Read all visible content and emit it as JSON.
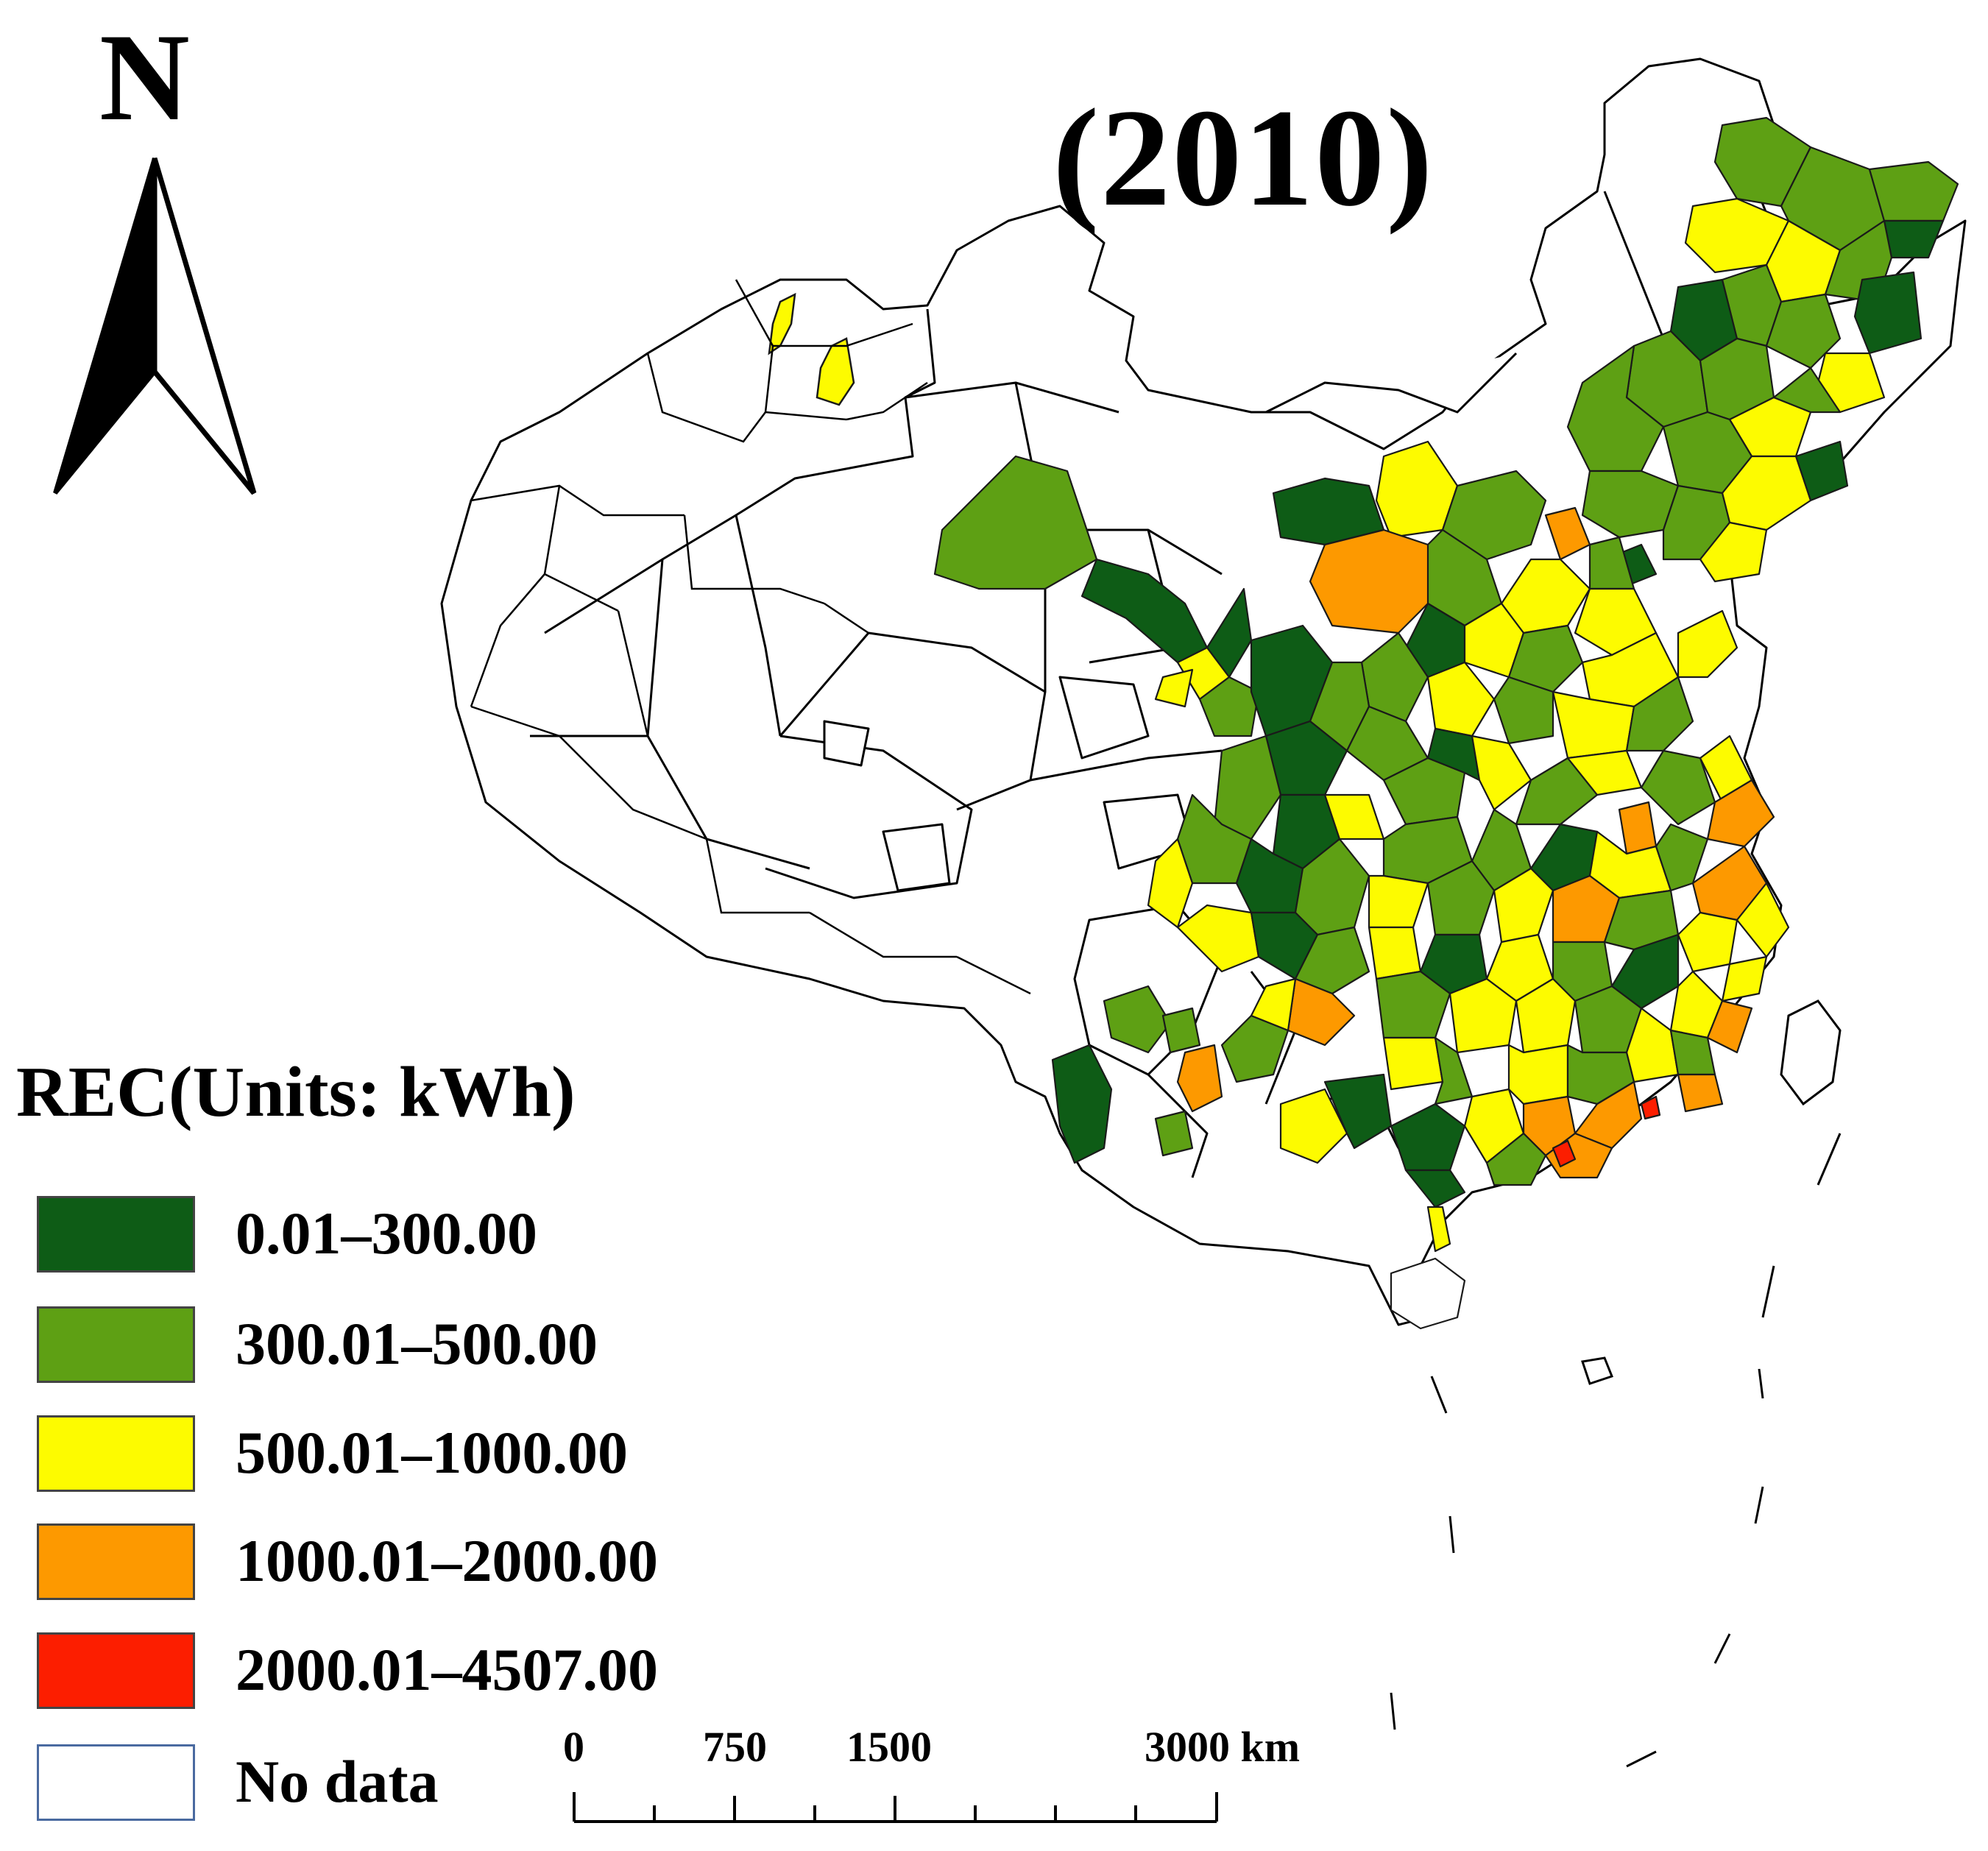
{
  "map": {
    "title": "(2010)",
    "north_label": "N",
    "legend": {
      "title": "REC(Units: kWh)",
      "classes": [
        {
          "label": "0.01–300.00",
          "color": "#0e5c16"
        },
        {
          "label": "300.01–500.00",
          "color": "#5ea014"
        },
        {
          "label": "500.01–1000.00",
          "color": "#fdfb00"
        },
        {
          "label": "1000.01–2000.00",
          "color": "#fd9900"
        },
        {
          "label": "2000.01–4507.00",
          "color": "#fc1e00"
        },
        {
          "label": "No data",
          "color": "#ffffff"
        }
      ]
    },
    "scale_bar": {
      "labels": [
        "0",
        "750",
        "1500",
        "3000 km"
      ]
    }
  }
}
